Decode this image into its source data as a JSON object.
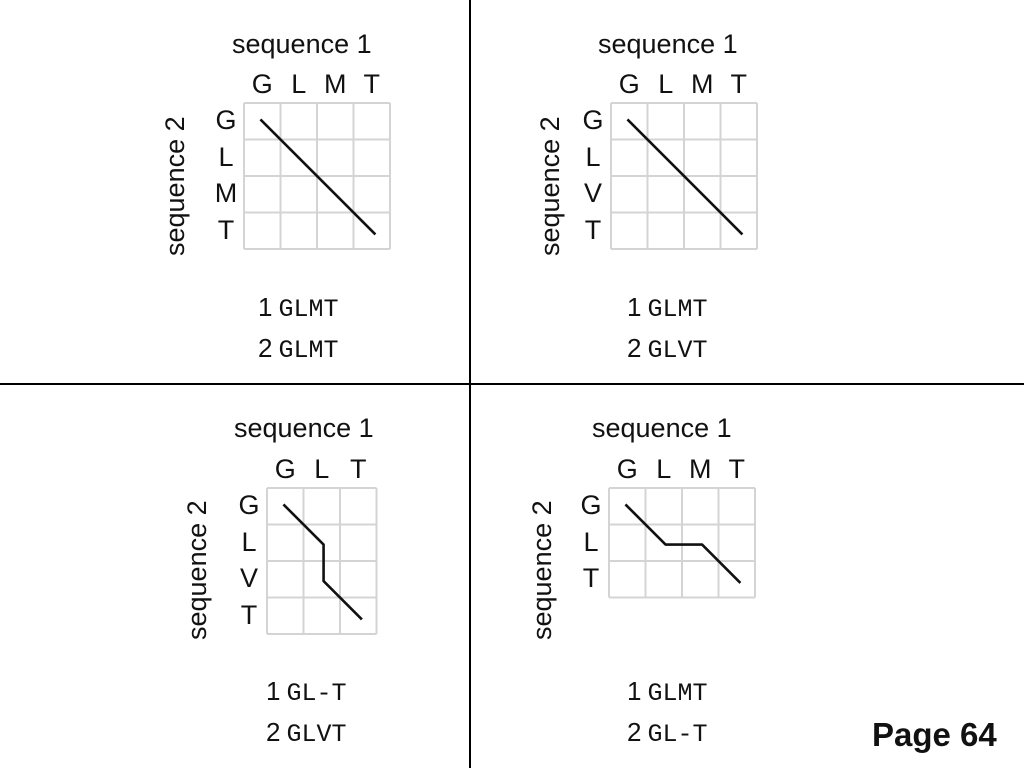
{
  "panels": [
    {
      "sequence1_label": "sequence 1",
      "sequence2_label": "sequence 2",
      "columns": [
        "G",
        "L",
        "M",
        "T"
      ],
      "rows": [
        "G",
        "L",
        "M",
        "T"
      ],
      "path": [
        [
          0,
          0
        ],
        [
          1,
          1
        ],
        [
          2,
          2
        ],
        [
          3,
          3
        ]
      ],
      "alignment": [
        {
          "index": "1",
          "seq": "GLMT"
        },
        {
          "index": "2",
          "seq": "GLMT"
        }
      ]
    },
    {
      "sequence1_label": "sequence 1",
      "sequence2_label": "sequence 2",
      "columns": [
        "G",
        "L",
        "M",
        "T"
      ],
      "rows": [
        "G",
        "L",
        "V",
        "T"
      ],
      "path": [
        [
          0,
          0
        ],
        [
          1,
          1
        ],
        [
          2,
          2
        ],
        [
          3,
          3
        ]
      ],
      "alignment": [
        {
          "index": "1",
          "seq": "GLMT"
        },
        {
          "index": "2",
          "seq": "GLVT"
        }
      ]
    },
    {
      "sequence1_label": "sequence 1",
      "sequence2_label": "sequence 2",
      "columns": [
        "G",
        "L",
        "T"
      ],
      "rows": [
        "G",
        "L",
        "V",
        "T"
      ],
      "path": [
        [
          0,
          0
        ],
        [
          1,
          1
        ],
        [
          1,
          2
        ],
        [
          2,
          3
        ]
      ],
      "alignment": [
        {
          "index": "1",
          "seq": "GL-T"
        },
        {
          "index": "2",
          "seq": "GLVT"
        }
      ]
    },
    {
      "sequence1_label": "sequence 1",
      "sequence2_label": "sequence 2",
      "columns": [
        "G",
        "L",
        "M",
        "T"
      ],
      "rows": [
        "G",
        "L",
        "T"
      ],
      "path": [
        [
          0,
          0
        ],
        [
          1,
          1
        ],
        [
          2,
          1
        ],
        [
          3,
          2
        ]
      ],
      "alignment": [
        {
          "index": "1",
          "seq": "GLMT"
        },
        {
          "index": "2",
          "seq": "GL-T"
        }
      ]
    }
  ],
  "colors": {
    "grid": "#d4d4d4",
    "path": "#111111",
    "divider": "#000000"
  },
  "footer": {
    "page_label": "Page 64"
  }
}
